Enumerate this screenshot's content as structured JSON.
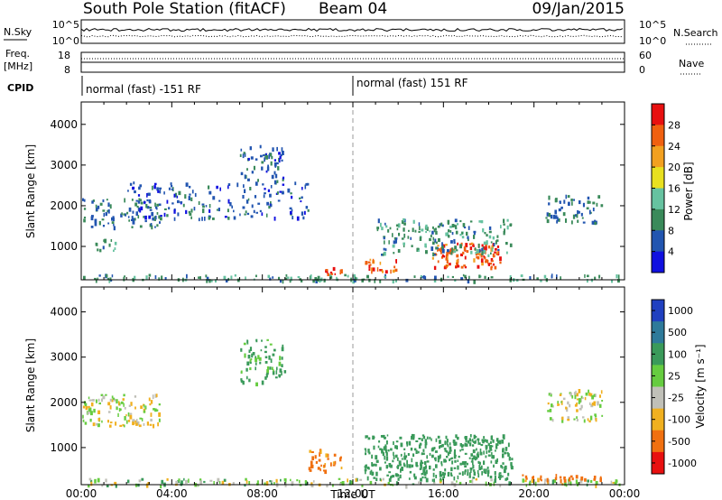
{
  "header": {
    "title": "South Pole Station (fitACF)",
    "beam": "Beam 04",
    "date": "09/Jan/2015"
  },
  "strip_panels": {
    "nsky_label": "N.Sky",
    "nsky_ticks": [
      "10^5",
      "10^0"
    ],
    "nsearch_label": "N.Search",
    "nsearch_ticks": [
      "10^5",
      "10^0"
    ],
    "freq_label_line1": "Freq.",
    "freq_label_line2": "[MHz]",
    "freq_ticks": [
      "18",
      "8"
    ],
    "nave_label": "Nave",
    "nave_ticks": [
      "60",
      "0"
    ],
    "cpid_label": "CPID",
    "cpid_segments": [
      {
        "label": "normal (fast) -151 RF",
        "start_hour": 0,
        "end_hour": 12
      },
      {
        "label": "normal (fast) 151 RF",
        "start_hour": 12,
        "end_hour": 24
      }
    ]
  },
  "chart_data": [
    {
      "type": "heatmap",
      "name": "power",
      "ylabel": "Slant Range [km]",
      "xlabel": "Time UT",
      "xlim": [
        0,
        24
      ],
      "ylim": [
        180,
        4550
      ],
      "yticks": [
        "1000",
        "2000",
        "3000",
        "4000"
      ],
      "xticks": [
        "00:00",
        "04:00",
        "08:00",
        "12:00",
        "16:00",
        "20:00",
        "00:00"
      ],
      "colorbar": {
        "label": "Power [dB]",
        "ticks": [
          "4",
          "8",
          "12",
          "16",
          "20",
          "24",
          "28"
        ],
        "colors": [
          "#1010e0",
          "#2255b0",
          "#3a8a5a",
          "#66c2a0",
          "#e8e020",
          "#f2a020",
          "#f06010",
          "#e81010"
        ]
      },
      "echo_regions": [
        {
          "t": [
            0.0,
            24.0
          ],
          "r": [
            180,
            330
          ],
          "intensity": 10,
          "density": 0.5
        },
        {
          "t": [
            0.5,
            1.5
          ],
          "r": [
            900,
            1200
          ],
          "intensity": 10,
          "density": 0.5
        },
        {
          "t": [
            0.0,
            3.5
          ],
          "r": [
            1500,
            2200
          ],
          "intensity": 8,
          "density": 0.4
        },
        {
          "t": [
            2.0,
            10.0
          ],
          "r": [
            1700,
            2600
          ],
          "intensity": 6,
          "density": 0.3
        },
        {
          "t": [
            7.0,
            9.0
          ],
          "r": [
            2600,
            3500
          ],
          "intensity": 6,
          "density": 0.4
        },
        {
          "t": [
            10.5,
            11.5
          ],
          "r": [
            300,
            500
          ],
          "intensity": 28,
          "density": 0.7
        },
        {
          "t": [
            12.5,
            14.0
          ],
          "r": [
            400,
            700
          ],
          "intensity": 26,
          "density": 0.7
        },
        {
          "t": [
            15.5,
            18.5
          ],
          "r": [
            500,
            1100
          ],
          "intensity": 27,
          "density": 0.8
        },
        {
          "t": [
            13.0,
            19.0
          ],
          "r": [
            800,
            1700
          ],
          "intensity": 10,
          "density": 0.4
        },
        {
          "t": [
            20.5,
            23.0
          ],
          "r": [
            1600,
            2300
          ],
          "intensity": 8,
          "density": 0.4
        }
      ]
    },
    {
      "type": "heatmap",
      "name": "velocity",
      "ylabel": "Slant Range [km]",
      "xlabel": "Time UT",
      "xlim": [
        0,
        24
      ],
      "ylim": [
        180,
        4550
      ],
      "yticks": [
        "1000",
        "2000",
        "3000",
        "4000"
      ],
      "xticks": [
        "00:00",
        "04:00",
        "08:00",
        "12:00",
        "16:00",
        "20:00",
        "00:00"
      ],
      "colorbar": {
        "label": "Velocity [m s⁻¹]",
        "ticks": [
          "1000",
          "500",
          "100",
          "25",
          "-25",
          "-100",
          "-500",
          "-1000"
        ],
        "colors": [
          "#2040c0",
          "#2e7a9a",
          "#3a9a5a",
          "#66cc40",
          "#c0c0b8",
          "#f0b020",
          "#f07010",
          "#e81010"
        ]
      },
      "echo_regions": [
        {
          "t": [
            0.0,
            24.0
          ],
          "r": [
            180,
            330
          ],
          "velocity": 50,
          "density": 0.5
        },
        {
          "t": [
            0.0,
            3.5
          ],
          "r": [
            1500,
            2200
          ],
          "velocity": 0,
          "density": 0.5
        },
        {
          "t": [
            7.0,
            9.0
          ],
          "r": [
            2400,
            3400
          ],
          "velocity": 150,
          "density": 0.4
        },
        {
          "t": [
            10.0,
            11.5
          ],
          "r": [
            500,
            1000
          ],
          "velocity": -150,
          "density": 0.5
        },
        {
          "t": [
            12.5,
            19.0
          ],
          "r": [
            300,
            1300
          ],
          "velocity": 400,
          "density": 0.7
        },
        {
          "t": [
            19.0,
            23.0
          ],
          "r": [
            300,
            420
          ],
          "velocity": -300,
          "density": 0.6
        },
        {
          "t": [
            20.5,
            23.0
          ],
          "r": [
            1600,
            2300
          ],
          "velocity": 0,
          "density": 0.5
        }
      ]
    }
  ]
}
